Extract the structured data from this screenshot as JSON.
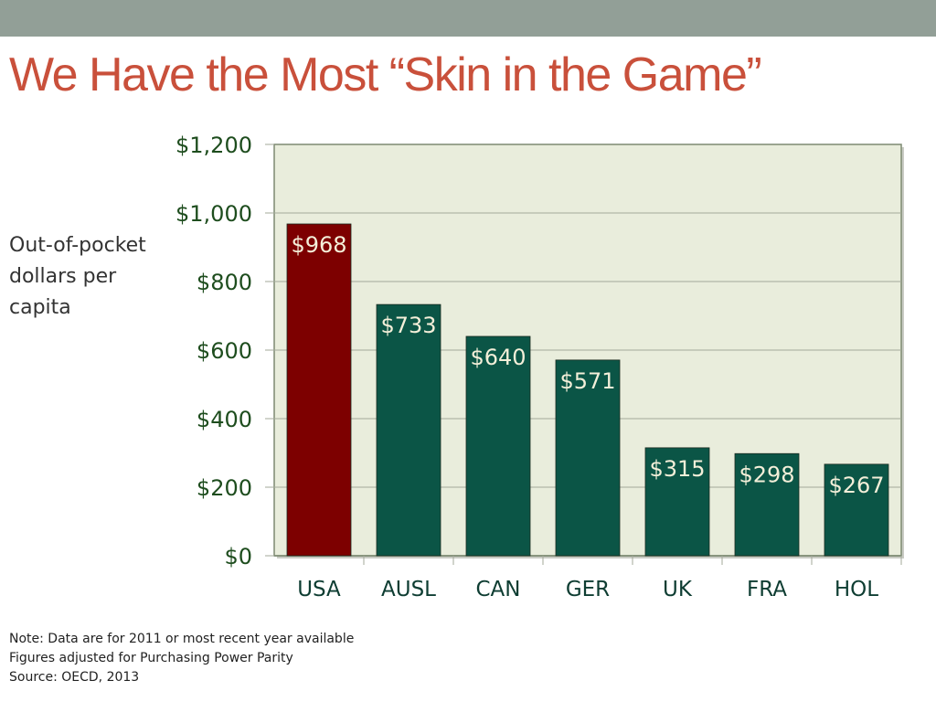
{
  "title": "We Have the Most “Skin in the Game”",
  "chart_data": {
    "type": "bar",
    "title": "We Have the Most “Skin in the Game”",
    "ylabel": "Out-of-pocket dollars per capita",
    "xlabel": "",
    "categories": [
      "USA",
      "AUSL",
      "CAN",
      "GER",
      "UK",
      "FRA",
      "HOL"
    ],
    "values": [
      968,
      733,
      640,
      571,
      315,
      298,
      267
    ],
    "data_labels": [
      "$968",
      "$733",
      "$640",
      "$571",
      "$315",
      "$298",
      "$267"
    ],
    "ylim": [
      0,
      1200
    ],
    "yticks": [
      0,
      200,
      400,
      600,
      800,
      1000,
      1200
    ],
    "ytick_labels": [
      "$0",
      "$200",
      "$400",
      "$600",
      "$800",
      "$1,000",
      "$1,200"
    ],
    "grid": true,
    "colors": {
      "highlight": "#7d0000",
      "default": "#0b5546",
      "plot_bg": "#e9eddc"
    }
  },
  "notes": [
    "Note: Data are for 2011 or most recent year available",
    "Figures adjusted for Purchasing Power Parity",
    "Source: OECD, 2013"
  ]
}
